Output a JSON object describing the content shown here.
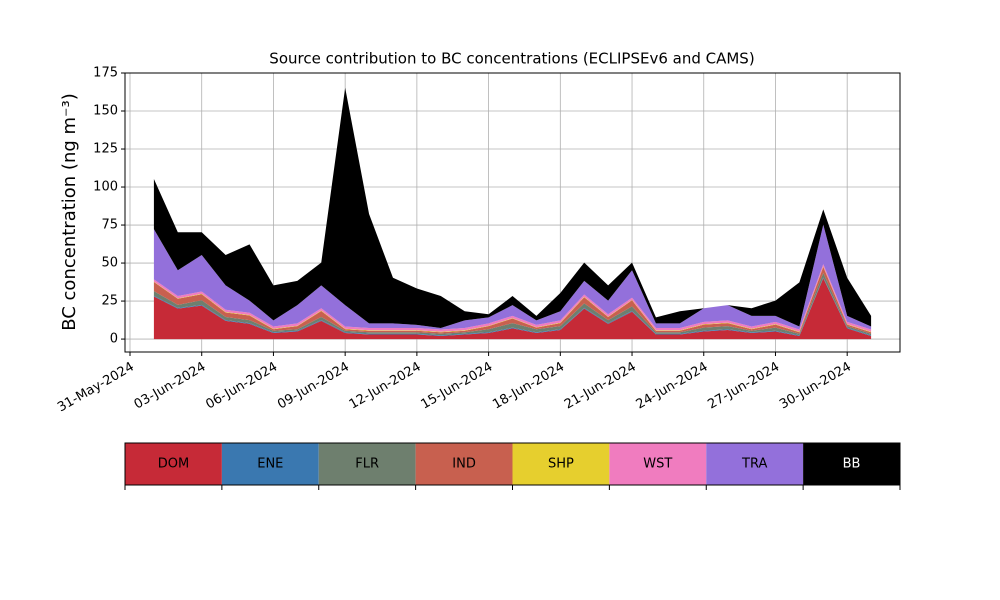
{
  "chart_data": {
    "type": "stacked-area",
    "title": "Source contribution to BC concentrations (ECLIPSEv6 and CAMS)",
    "y_label": "BC concentration (ng m⁻³)",
    "x": [
      "2024-06-01",
      "2024-06-02",
      "2024-06-03",
      "2024-06-04",
      "2024-06-05",
      "2024-06-06",
      "2024-06-07",
      "2024-06-08",
      "2024-06-09",
      "2024-06-10",
      "2024-06-11",
      "2024-06-12",
      "2024-06-13",
      "2024-06-14",
      "2024-06-15",
      "2024-06-16",
      "2024-06-17",
      "2024-06-18",
      "2024-06-19",
      "2024-06-20",
      "2024-06-21",
      "2024-06-22",
      "2024-06-23",
      "2024-06-24",
      "2024-06-25",
      "2024-06-26",
      "2024-06-27",
      "2024-06-28",
      "2024-06-29",
      "2024-06-30",
      "2024-07-01"
    ],
    "series": [
      {
        "name": "DOM",
        "color": "#c62a37",
        "values": [
          28,
          20,
          22,
          12,
          10,
          4,
          5,
          12,
          4,
          3,
          3,
          3,
          2,
          3,
          4,
          7,
          4,
          6,
          20,
          10,
          18,
          3,
          3,
          5,
          6,
          4,
          5,
          2,
          40,
          7,
          2
        ]
      },
      {
        "name": "ENE",
        "color": "#3a78b0",
        "values": [
          0.5,
          0.5,
          0.5,
          0.5,
          0.5,
          0.5,
          0.5,
          0.5,
          0.5,
          0.5,
          0.5,
          0.5,
          0.5,
          0.5,
          0.5,
          0.5,
          0.5,
          0.5,
          0.5,
          0.5,
          0.5,
          0.5,
          0.5,
          0.5,
          0.5,
          0.5,
          0.5,
          0.5,
          0.5,
          0.5,
          0.5
        ]
      },
      {
        "name": "FLR",
        "color": "#6e7f6e",
        "values": [
          3,
          2,
          3,
          2,
          2,
          1,
          1,
          2,
          1,
          1,
          1,
          1,
          1,
          1,
          2,
          3,
          2,
          2,
          3,
          2,
          3,
          1,
          1,
          2,
          2,
          1,
          2,
          1,
          3,
          1,
          1
        ]
      },
      {
        "name": "IND",
        "color": "#c8604f",
        "values": [
          6,
          4,
          4,
          3,
          3,
          1,
          2,
          4,
          1,
          1,
          1,
          1,
          1,
          1,
          2,
          3,
          1,
          2,
          4,
          2,
          4,
          1,
          1,
          2,
          2,
          1,
          2,
          1,
          4,
          1,
          1
        ]
      },
      {
        "name": "SHP",
        "color": "#e6cf2e",
        "values": [
          0.3,
          0.3,
          0.3,
          0.3,
          0.3,
          0.3,
          0.3,
          0.3,
          0.3,
          0.3,
          0.3,
          0.3,
          0.3,
          0.3,
          0.3,
          0.3,
          0.3,
          0.3,
          0.3,
          0.3,
          0.3,
          0.3,
          0.3,
          0.3,
          0.3,
          0.3,
          0.3,
          0.3,
          0.3,
          0.3,
          0.3
        ]
      },
      {
        "name": "WST",
        "color": "#f07cbf",
        "values": [
          1.5,
          1.5,
          1.5,
          1.5,
          1.5,
          1.5,
          1.5,
          1.5,
          1.5,
          1.5,
          1.5,
          1.5,
          1.5,
          1.5,
          1.5,
          1.5,
          1.5,
          1.5,
          1.5,
          1.5,
          1.5,
          1.5,
          1.5,
          1.5,
          1.5,
          1.5,
          1.5,
          1.5,
          1.5,
          1.5,
          1.5
        ]
      },
      {
        "name": "TRA",
        "color": "#9370db",
        "values": [
          33,
          17,
          24,
          16,
          8,
          4,
          12,
          15,
          14,
          3,
          3,
          2,
          1,
          5,
          4,
          7,
          3,
          6,
          9,
          9,
          18,
          3,
          3,
          9,
          10,
          7,
          4,
          2,
          26,
          4,
          2
        ]
      },
      {
        "name": "BB",
        "color": "#000000",
        "values": [
          33,
          25,
          15,
          20,
          37,
          23,
          16,
          15,
          143,
          72,
          30,
          24,
          21,
          6,
          2,
          6,
          3,
          12,
          12,
          10,
          5,
          4,
          8,
          0,
          0,
          5,
          10,
          29,
          10,
          25,
          7
        ]
      }
    ],
    "xlim": [
      "2024-05-31",
      "2024-07-02"
    ],
    "xticks": [
      {
        "value": "2024-05-31",
        "label": "31-May-2024"
      },
      {
        "value": "2024-06-03",
        "label": "03-Jun-2024"
      },
      {
        "value": "2024-06-06",
        "label": "06-Jun-2024"
      },
      {
        "value": "2024-06-09",
        "label": "09-Jun-2024"
      },
      {
        "value": "2024-06-12",
        "label": "12-Jun-2024"
      },
      {
        "value": "2024-06-15",
        "label": "15-Jun-2024"
      },
      {
        "value": "2024-06-18",
        "label": "18-Jun-2024"
      },
      {
        "value": "2024-06-21",
        "label": "21-Jun-2024"
      },
      {
        "value": "2024-06-24",
        "label": "24-Jun-2024"
      },
      {
        "value": "2024-06-27",
        "label": "27-Jun-2024"
      },
      {
        "value": "2024-06-30",
        "label": "30-Jun-2024"
      }
    ],
    "ylim": [
      -8.5,
      175
    ],
    "yticks": [
      0,
      25,
      50,
      75,
      100,
      125,
      150,
      175
    ],
    "grid": true
  }
}
